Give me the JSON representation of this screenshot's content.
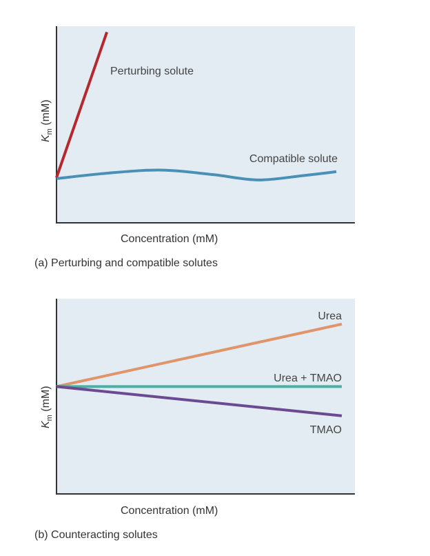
{
  "charts": [
    {
      "caption_letter": "(a)",
      "caption_text": "Perturbing and compatible solutes",
      "xlabel": "Concentration (mM)",
      "ylabel_main": "K",
      "ylabel_sub": "m",
      "ylabel_rest": " (mM)"
    },
    {
      "caption_letter": "(b)",
      "caption_text": "Counteracting solutes",
      "xlabel": "Concentration (mM)",
      "ylabel_main": "K",
      "ylabel_sub": "m",
      "ylabel_rest": " (mM)"
    }
  ],
  "chart_data": [
    {
      "type": "line",
      "title": "Perturbing and compatible solutes",
      "xlabel": "Concentration (mM)",
      "ylabel": "Km (mM)",
      "xlim": [
        0,
        100
      ],
      "ylim": [
        0,
        100
      ],
      "grid": false,
      "background_color": "#e3ecf2",
      "series": [
        {
          "name": "Perturbing solute",
          "color": "#b5282e",
          "x": [
            0,
            18
          ],
          "y": [
            23,
            97
          ]
        },
        {
          "name": "Compatible solute",
          "color": "#4a8fb5",
          "x": [
            0,
            20,
            38,
            56,
            72,
            88,
            100
          ],
          "y": [
            22.5,
            25.5,
            26.8,
            24.5,
            21.8,
            24.0,
            26.0
          ]
        }
      ]
    },
    {
      "type": "line",
      "title": "Counteracting solutes",
      "xlabel": "Concentration (mM)",
      "ylabel": "Km (mM)",
      "xlim": [
        0,
        100
      ],
      "ylim": [
        0,
        100
      ],
      "grid": false,
      "background_color": "#e3ecf2",
      "series": [
        {
          "name": "Urea",
          "color": "#e0946a",
          "x": [
            0,
            100
          ],
          "y": [
            55,
            87
          ]
        },
        {
          "name": "Urea + TMAO",
          "color": "#45b2a3",
          "x": [
            0,
            100
          ],
          "y": [
            55,
            55
          ]
        },
        {
          "name": "TMAO",
          "color": "#6c4a92",
          "x": [
            0,
            100
          ],
          "y": [
            55,
            40
          ]
        }
      ]
    }
  ]
}
